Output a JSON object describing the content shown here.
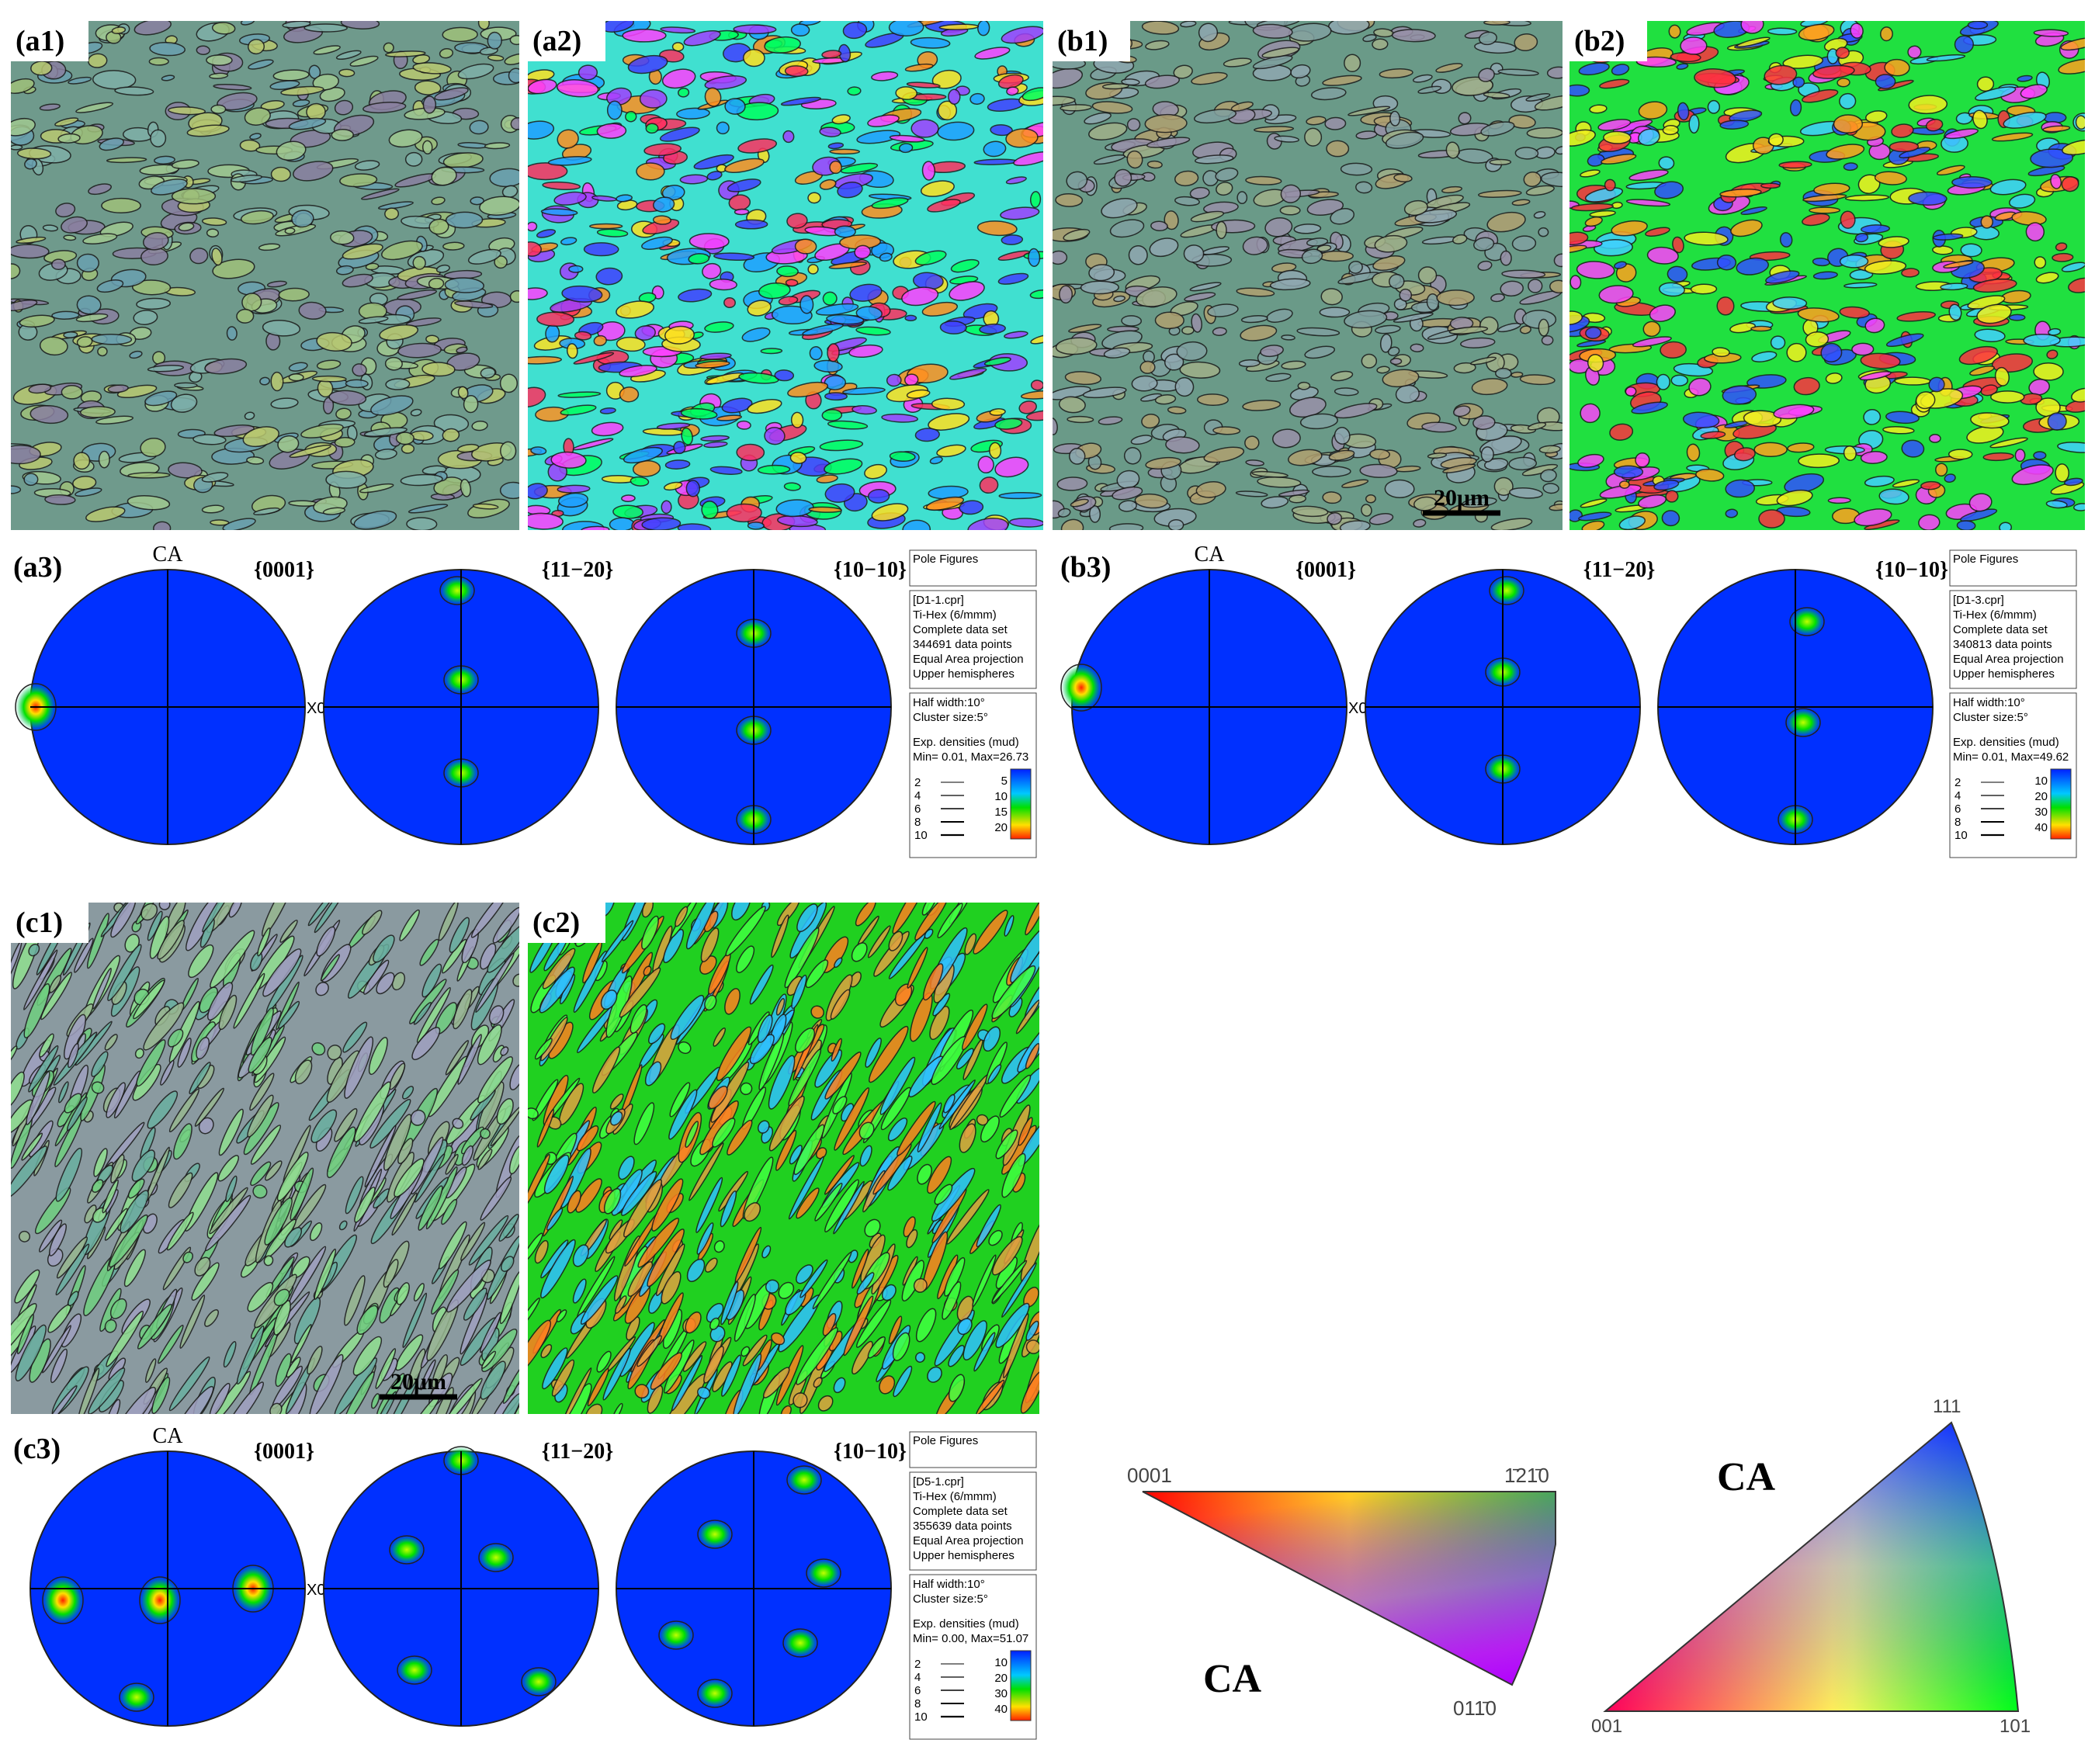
{
  "panels": [
    {
      "label": "(a1)"
    },
    {
      "label": "(a2)"
    },
    {
      "label": "(b1)",
      "scale_bar": "20μm"
    },
    {
      "label": "(b2)"
    },
    {
      "label": "(c1)",
      "scale_bar": "20μm"
    },
    {
      "label": "(c2)"
    }
  ],
  "pole_figures": [
    {
      "label": "(a3)",
      "axis": "CA",
      "side": "X0",
      "planes": [
        "{0001}",
        "{11−20}",
        "{10−10}"
      ],
      "info": {
        "title": "Pole Figures",
        "lines": [
          "[D1-1.cpr]",
          "Ti-Hex (6/mmm)",
          "Complete data set",
          "344691 data points",
          "Equal Area projection",
          "Upper hemispheres"
        ],
        "settings": [
          "Half width:10°",
          "Cluster size:5°"
        ],
        "densities": [
          "Exp. densities (mud)",
          "Min= 0.01, Max=26.73"
        ],
        "contours": [
          "2",
          "4",
          "6",
          "8",
          "10"
        ],
        "colorbar": [
          "5",
          "10",
          "15",
          "20"
        ]
      }
    },
    {
      "label": "(b3)",
      "axis": "CA",
      "side": "X0",
      "planes": [
        "{0001}",
        "{11−20}",
        "{10−10}"
      ],
      "info": {
        "title": "Pole Figures",
        "lines": [
          "[D1-3.cpr]",
          "Ti-Hex (6/mmm)",
          "Complete data set",
          "340813 data points",
          "Equal Area projection",
          "Upper hemispheres"
        ],
        "settings": [
          "Half width:10°",
          "Cluster size:5°"
        ],
        "densities": [
          "Exp. densities (mud)",
          "Min= 0.01, Max=49.62"
        ],
        "contours": [
          "2",
          "4",
          "6",
          "8",
          "10"
        ],
        "colorbar": [
          "10",
          "20",
          "30",
          "40"
        ]
      }
    },
    {
      "label": "(c3)",
      "axis": "CA",
      "side": "X0",
      "planes": [
        "{0001}",
        "{11−20}",
        "{10−10}"
      ],
      "info": {
        "title": "Pole Figures",
        "lines": [
          "[D5-1.cpr]",
          "Ti-Hex (6/mmm)",
          "Complete data set",
          "355639 data points",
          "Equal Area projection",
          "Upper hemispheres"
        ],
        "settings": [
          "Half width:10°",
          "Cluster size:5°"
        ],
        "densities": [
          "Exp. densities (mud)",
          "Min= 0.00, Max=51.07"
        ],
        "contours": [
          "2",
          "4",
          "6",
          "8",
          "10"
        ],
        "colorbar": [
          "10",
          "20",
          "30",
          "40"
        ]
      }
    }
  ],
  "legend": {
    "hcp": {
      "corners": [
        "0001",
        "1̄21̄0",
        "011̄0"
      ],
      "axis": "CA"
    },
    "cubic": {
      "corners": [
        "111",
        "001",
        "101"
      ],
      "axis": "CA"
    }
  }
}
